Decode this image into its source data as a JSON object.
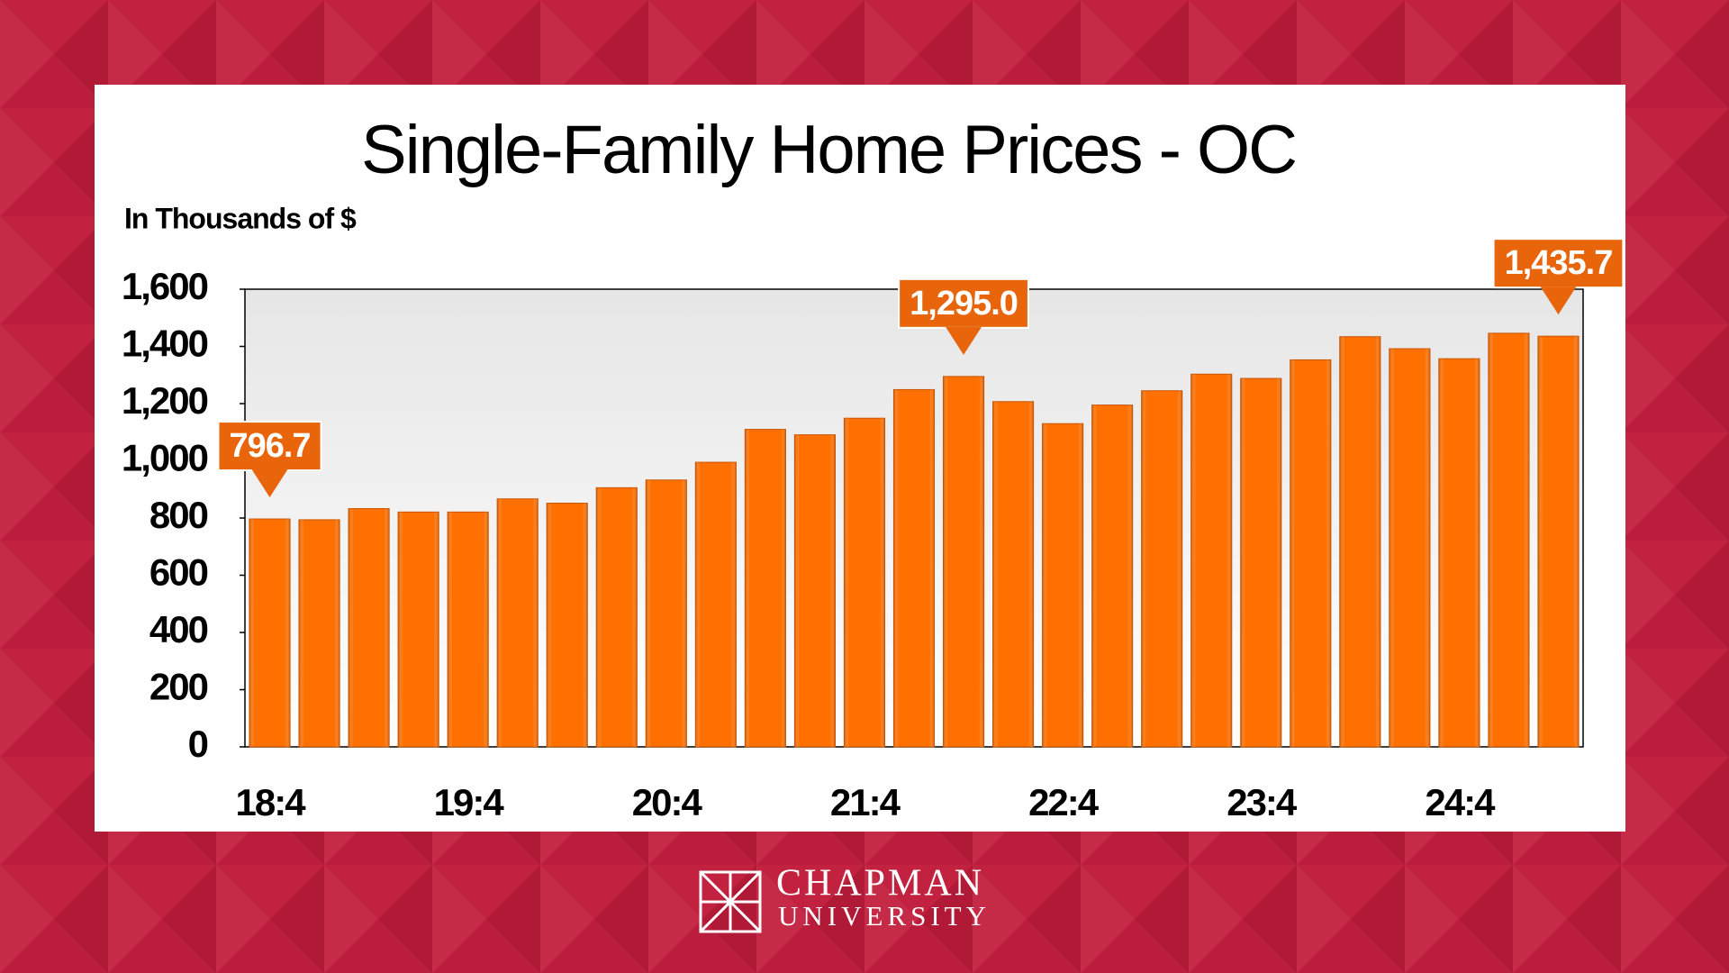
{
  "chart_data": {
    "type": "bar",
    "title": "Single-Family Home Prices - OC",
    "y_label": "In Thousands of $",
    "categories": [
      "18:4",
      null,
      null,
      null,
      "19:4",
      null,
      null,
      null,
      "20:4",
      null,
      null,
      null,
      "21:4",
      null,
      null,
      null,
      "22:4",
      null,
      null,
      null,
      "23:4",
      null,
      null,
      null,
      "24:4",
      null,
      null
    ],
    "values": [
      796.7,
      794,
      833,
      821,
      821,
      867,
      852,
      906,
      933,
      995,
      1110,
      1091,
      1149,
      1249,
      1295.0,
      1207,
      1130,
      1195,
      1245,
      1303,
      1288,
      1353,
      1434,
      1392,
      1357,
      1446,
      1435.7
    ],
    "value_labels": [
      "796.7",
      null,
      null,
      null,
      null,
      null,
      null,
      null,
      null,
      null,
      null,
      null,
      null,
      null,
      "1,295.0",
      null,
      null,
      null,
      null,
      null,
      null,
      null,
      null,
      null,
      null,
      null,
      "1,435.7"
    ],
    "color": "#ff7000",
    "ylim": [
      0,
      1600
    ],
    "yticks": [
      0,
      200,
      400,
      600,
      800,
      {
        "value": 1000,
        "label": "1,000"
      },
      {
        "value": 1200,
        "label": "1,200"
      },
      {
        "value": 1400,
        "label": "1,400"
      },
      {
        "value": 1600,
        "label": "1,600"
      }
    ],
    "grid": false
  },
  "logo": {
    "line1": "CHAPMAN",
    "line2": "UNIVERSITY"
  }
}
